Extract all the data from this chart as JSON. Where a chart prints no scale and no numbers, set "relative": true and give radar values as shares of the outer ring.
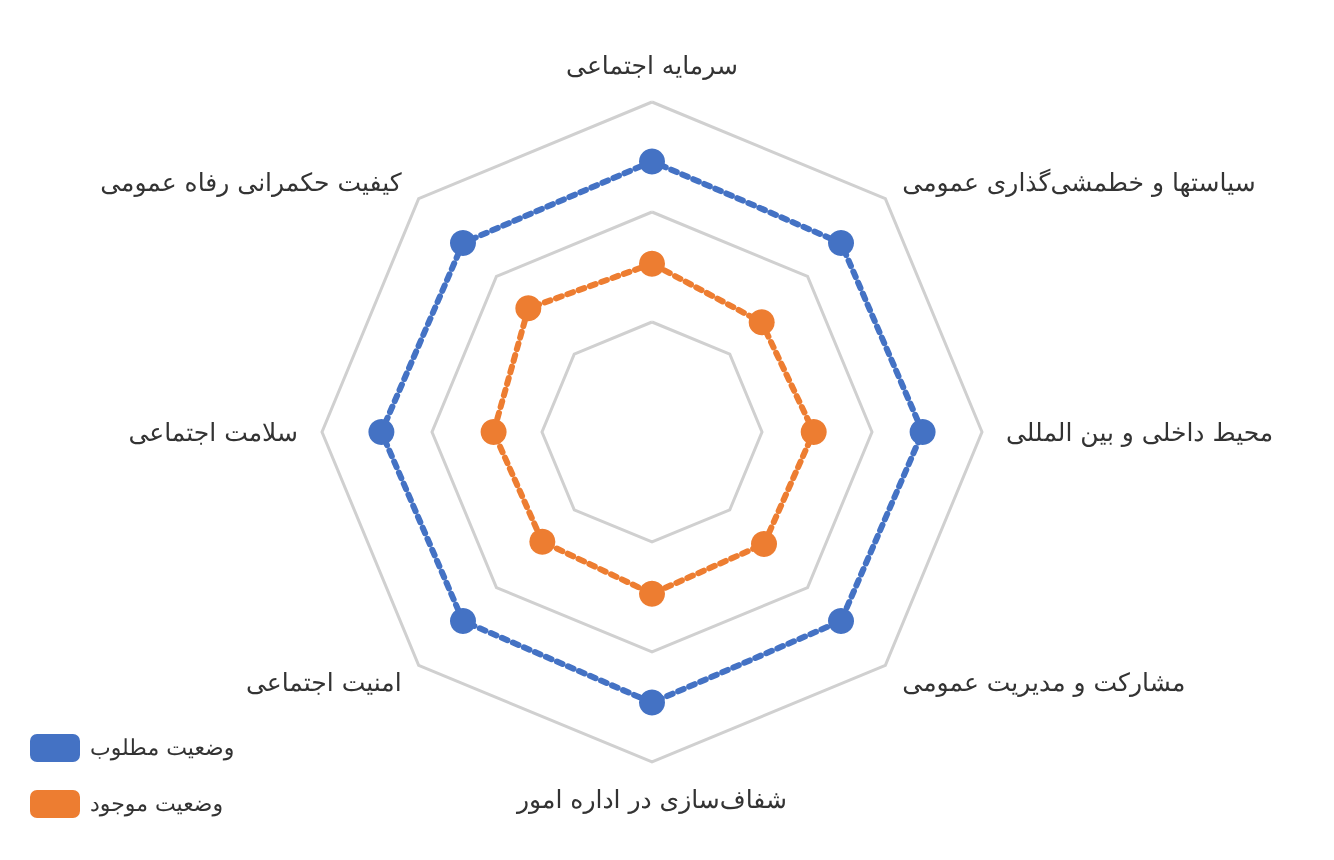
{
  "chart_data": {
    "type": "radar",
    "relative": true,
    "categories": [
      "سرمایه اجتماعی",
      "سیاستها و خطمشی‌گذاری عمومی",
      "محیط داخلی و بین المللی",
      "مشارکت و مدیریت عمومی",
      "شفاف‌سازی در اداره امور",
      "امنیت اجتماعی",
      "سلامت اجتماعی",
      "کیفیت حکمرانی رفاه عمومی"
    ],
    "series": [
      {
        "name": "وضعیت مطلوب",
        "color": "#4472c4",
        "values": [
          0.82,
          0.81,
          0.82,
          0.81,
          0.82,
          0.81,
          0.82,
          0.81
        ]
      },
      {
        "name": "وضعیت موجود",
        "color": "#ed7d31",
        "values": [
          0.51,
          0.47,
          0.49,
          0.48,
          0.49,
          0.47,
          0.48,
          0.53
        ]
      }
    ],
    "grid": true,
    "legend": "bottom left",
    "marker": "circle",
    "line_style": "dotted"
  }
}
